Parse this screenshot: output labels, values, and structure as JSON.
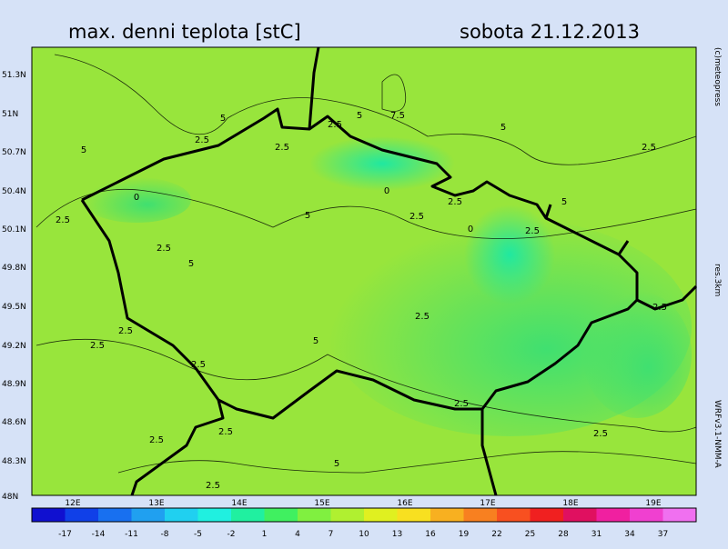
{
  "header": {
    "title": "max. denni teplota [stC]",
    "date": "sobota 21.12.2013"
  },
  "side": {
    "credit": "(c)meteopress",
    "resolution": "res.3km",
    "model": "WRFv3.1-NMM-A"
  },
  "map": {
    "lat_labels": [
      "51.3N",
      "51N",
      "50.7N",
      "50.4N",
      "50.1N",
      "49.8N",
      "49.5N",
      "49.2N",
      "48.9N",
      "48.6N",
      "48.3N",
      "48N"
    ],
    "lon_labels": [
      "12E",
      "13E",
      "14E",
      "15E",
      "16E",
      "17E",
      "18E",
      "19E"
    ],
    "contour_labels": [
      "5",
      "2.5",
      "5",
      "2.5",
      "2.5",
      "5",
      "7.5",
      "5",
      "2.5",
      "0",
      "0",
      "2.5",
      "5",
      "2.5",
      "0",
      "2.5",
      "5",
      "2.5",
      "5",
      "2.5",
      "2.5",
      "2.5",
      "2.5",
      "5",
      "2.5",
      "2.5",
      "2.5",
      "2.5",
      "2.5",
      "5",
      "2.5",
      "2.5"
    ]
  },
  "colorbar": {
    "labels": [
      "-17",
      "-14",
      "-11",
      "-8",
      "-5",
      "-2",
      "1",
      "4",
      "7",
      "10",
      "13",
      "16",
      "19",
      "22",
      "25",
      "28",
      "31",
      "34",
      "37"
    ]
  }
}
